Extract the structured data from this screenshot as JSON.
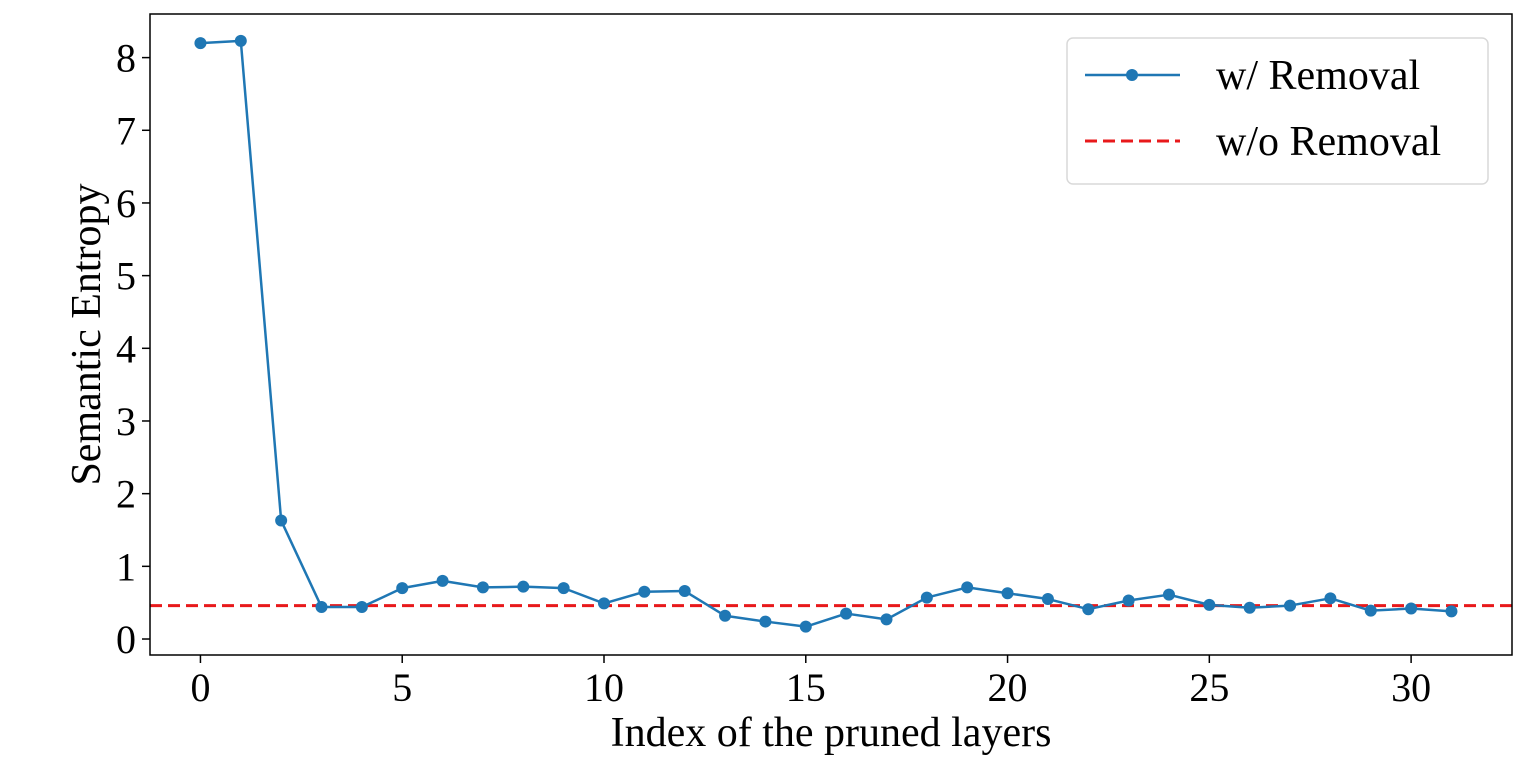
{
  "chart_data": {
    "type": "line",
    "title": "",
    "xlabel": "Index of the pruned layers",
    "ylabel": "Semantic Entropy",
    "xlim": [
      -1.25,
      32.5
    ],
    "ylim": [
      -0.22,
      8.6
    ],
    "xticks": [
      0,
      5,
      10,
      15,
      20,
      25,
      30
    ],
    "yticks": [
      0,
      1,
      2,
      3,
      4,
      5,
      6,
      7,
      8
    ],
    "grid": false,
    "legend_position": "top-right",
    "series": [
      {
        "name": "w/ Removal",
        "style": "line-marker",
        "color": "#1f77b4",
        "x": [
          0,
          1,
          2,
          3,
          4,
          5,
          6,
          7,
          8,
          9,
          10,
          11,
          12,
          13,
          14,
          15,
          16,
          17,
          18,
          19,
          20,
          21,
          22,
          23,
          24,
          25,
          26,
          27,
          28,
          29,
          30,
          31
        ],
        "y": [
          8.2,
          8.23,
          1.63,
          0.44,
          0.44,
          0.7,
          0.8,
          0.71,
          0.72,
          0.7,
          0.49,
          0.65,
          0.66,
          0.32,
          0.24,
          0.17,
          0.35,
          0.27,
          0.57,
          0.71,
          0.63,
          0.55,
          0.41,
          0.53,
          0.61,
          0.47,
          0.43,
          0.46,
          0.56,
          0.39,
          0.42,
          0.38
        ]
      },
      {
        "name": "w/o Removal",
        "style": "dashed",
        "color": "#e8191b",
        "value": 0.46
      }
    ]
  }
}
